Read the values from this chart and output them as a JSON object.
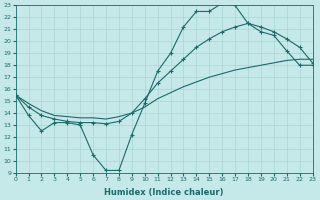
{
  "xlabel": "Humidex (Indice chaleur)",
  "xlim": [
    0,
    23
  ],
  "ylim": [
    9,
    23
  ],
  "xticks": [
    0,
    1,
    2,
    3,
    4,
    5,
    6,
    7,
    8,
    9,
    10,
    11,
    12,
    13,
    14,
    15,
    16,
    17,
    18,
    19,
    20,
    21,
    22,
    23
  ],
  "yticks": [
    9,
    10,
    11,
    12,
    13,
    14,
    15,
    16,
    17,
    18,
    19,
    20,
    21,
    22,
    23
  ],
  "background_color": "#c5e8e8",
  "grid_color": "#aad4d4",
  "line_color": "#1a6b6b",
  "curve1_x": [
    0,
    1,
    2,
    3,
    4,
    5,
    6,
    7,
    8,
    9,
    10,
    11,
    12,
    13,
    14,
    15,
    16,
    17,
    18,
    19,
    20,
    21,
    22,
    23
  ],
  "curve1_y": [
    15.5,
    13.8,
    12.5,
    13.2,
    13.2,
    13.0,
    10.5,
    9.2,
    9.2,
    12.2,
    14.8,
    17.5,
    19.0,
    21.2,
    22.5,
    22.5,
    23.2,
    23.0,
    21.5,
    20.8,
    20.5,
    19.2,
    18.0,
    18.0
  ],
  "curve2_x": [
    0,
    1,
    2,
    3,
    4,
    5,
    6,
    7,
    8,
    9,
    10,
    11,
    12,
    13,
    14,
    15,
    16,
    17,
    18,
    19,
    20,
    21,
    22,
    23
  ],
  "curve2_y": [
    15.5,
    14.5,
    13.8,
    13.5,
    13.3,
    13.2,
    13.2,
    13.1,
    13.3,
    14.0,
    15.2,
    16.5,
    17.5,
    18.5,
    19.5,
    20.2,
    20.8,
    21.2,
    21.5,
    21.2,
    20.8,
    20.2,
    19.5,
    18.2
  ],
  "curve3_x": [
    0,
    1,
    2,
    3,
    4,
    5,
    6,
    7,
    8,
    9,
    10,
    11,
    12,
    13,
    14,
    15,
    16,
    17,
    18,
    19,
    20,
    21,
    22,
    23
  ],
  "curve3_y": [
    15.5,
    14.8,
    14.2,
    13.8,
    13.7,
    13.6,
    13.6,
    13.5,
    13.7,
    14.0,
    14.5,
    15.2,
    15.7,
    16.2,
    16.6,
    17.0,
    17.3,
    17.6,
    17.8,
    18.0,
    18.2,
    18.4,
    18.5,
    18.5
  ]
}
